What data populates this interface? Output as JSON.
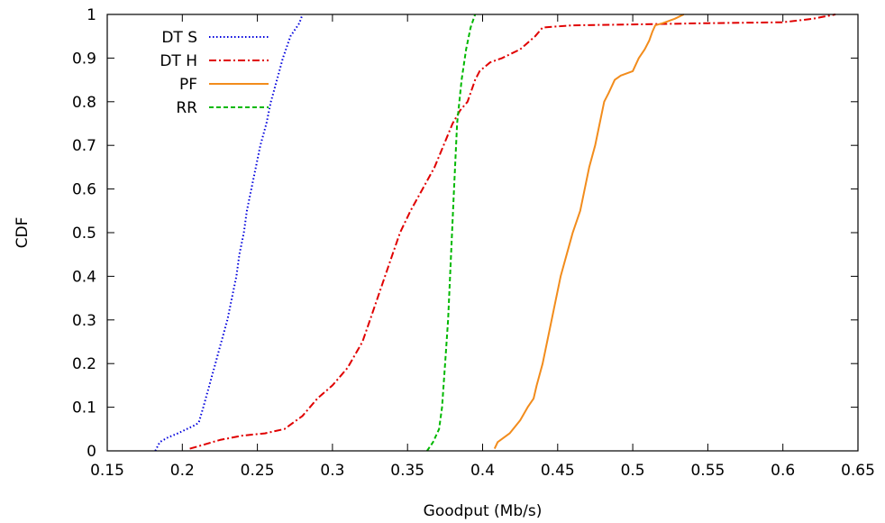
{
  "chart_data": {
    "type": "line",
    "title": "",
    "xlabel": "Goodput (Mb/s)",
    "ylabel": "CDF",
    "xlim": [
      0.15,
      0.65
    ],
    "ylim": [
      0,
      1
    ],
    "xticks": [
      {
        "v": 0.15,
        "label": "0.15"
      },
      {
        "v": 0.2,
        "label": "0.2"
      },
      {
        "v": 0.25,
        "label": "0.25"
      },
      {
        "v": 0.3,
        "label": "0.3"
      },
      {
        "v": 0.35,
        "label": "0.35"
      },
      {
        "v": 0.4,
        "label": "0.4"
      },
      {
        "v": 0.45,
        "label": "0.45"
      },
      {
        "v": 0.5,
        "label": "0.5"
      },
      {
        "v": 0.55,
        "label": "0.55"
      },
      {
        "v": 0.6,
        "label": "0.6"
      },
      {
        "v": 0.65,
        "label": "0.65"
      }
    ],
    "yticks": [
      {
        "v": 0,
        "label": "0"
      },
      {
        "v": 0.1,
        "label": "0.1"
      },
      {
        "v": 0.2,
        "label": "0.2"
      },
      {
        "v": 0.3,
        "label": "0.3"
      },
      {
        "v": 0.4,
        "label": "0.4"
      },
      {
        "v": 0.5,
        "label": "0.5"
      },
      {
        "v": 0.6,
        "label": "0.6"
      },
      {
        "v": 0.7,
        "label": "0.7"
      },
      {
        "v": 0.8,
        "label": "0.8"
      },
      {
        "v": 0.9,
        "label": "0.9"
      },
      {
        "v": 1,
        "label": "1"
      }
    ],
    "grid": false,
    "legend_position": "top-left",
    "series": [
      {
        "name": "DT S",
        "color": "#0000dd",
        "dash": "dotted",
        "x": [
          0.182,
          0.185,
          0.19,
          0.197,
          0.203,
          0.209,
          0.211,
          0.214,
          0.218,
          0.222,
          0.226,
          0.23,
          0.233,
          0.236,
          0.238,
          0.241,
          0.243,
          0.246,
          0.249,
          0.252,
          0.256,
          0.259,
          0.263,
          0.267,
          0.272,
          0.278,
          0.28
        ],
        "y": [
          0.0,
          0.02,
          0.03,
          0.04,
          0.05,
          0.06,
          0.065,
          0.1,
          0.15,
          0.2,
          0.25,
          0.3,
          0.35,
          0.4,
          0.45,
          0.5,
          0.55,
          0.6,
          0.65,
          0.7,
          0.75,
          0.8,
          0.85,
          0.9,
          0.95,
          0.98,
          1.0
        ]
      },
      {
        "name": "DT H",
        "color": "#e00000",
        "dash": "dash-dot",
        "x": [
          0.205,
          0.21,
          0.225,
          0.24,
          0.255,
          0.268,
          0.28,
          0.29,
          0.3,
          0.31,
          0.32,
          0.325,
          0.33,
          0.335,
          0.34,
          0.345,
          0.352,
          0.36,
          0.368,
          0.374,
          0.38,
          0.385,
          0.39,
          0.395,
          0.398,
          0.405,
          0.413,
          0.425,
          0.435,
          0.44,
          0.46,
          0.5,
          0.55,
          0.6,
          0.62,
          0.635
        ],
        "y": [
          0.005,
          0.01,
          0.025,
          0.035,
          0.04,
          0.05,
          0.08,
          0.12,
          0.15,
          0.19,
          0.25,
          0.3,
          0.35,
          0.4,
          0.45,
          0.5,
          0.55,
          0.6,
          0.65,
          0.7,
          0.75,
          0.78,
          0.8,
          0.85,
          0.87,
          0.89,
          0.9,
          0.92,
          0.95,
          0.97,
          0.975,
          0.977,
          0.98,
          0.982,
          0.99,
          1.0
        ]
      },
      {
        "name": "PF",
        "color": "#f28c1c",
        "dash": "solid",
        "x": [
          0.408,
          0.41,
          0.418,
          0.425,
          0.43,
          0.434,
          0.436,
          0.44,
          0.443,
          0.446,
          0.449,
          0.452,
          0.456,
          0.46,
          0.465,
          0.468,
          0.471,
          0.475,
          0.478,
          0.481,
          0.484,
          0.488,
          0.492,
          0.5,
          0.504,
          0.508,
          0.511,
          0.513,
          0.515,
          0.52,
          0.528,
          0.534
        ],
        "y": [
          0.005,
          0.02,
          0.04,
          0.07,
          0.1,
          0.12,
          0.15,
          0.2,
          0.25,
          0.3,
          0.35,
          0.4,
          0.45,
          0.5,
          0.55,
          0.6,
          0.65,
          0.7,
          0.75,
          0.8,
          0.82,
          0.85,
          0.86,
          0.87,
          0.9,
          0.92,
          0.94,
          0.96,
          0.975,
          0.98,
          0.99,
          1.0
        ]
      },
      {
        "name": "RR",
        "color": "#00b800",
        "dash": "dashed",
        "x": [
          0.363,
          0.367,
          0.371,
          0.373,
          0.375,
          0.377,
          0.379,
          0.381,
          0.383,
          0.386,
          0.389,
          0.392,
          0.395
        ],
        "y": [
          0.0,
          0.02,
          0.05,
          0.1,
          0.2,
          0.3,
          0.45,
          0.6,
          0.75,
          0.85,
          0.92,
          0.97,
          1.0
        ]
      }
    ]
  }
}
